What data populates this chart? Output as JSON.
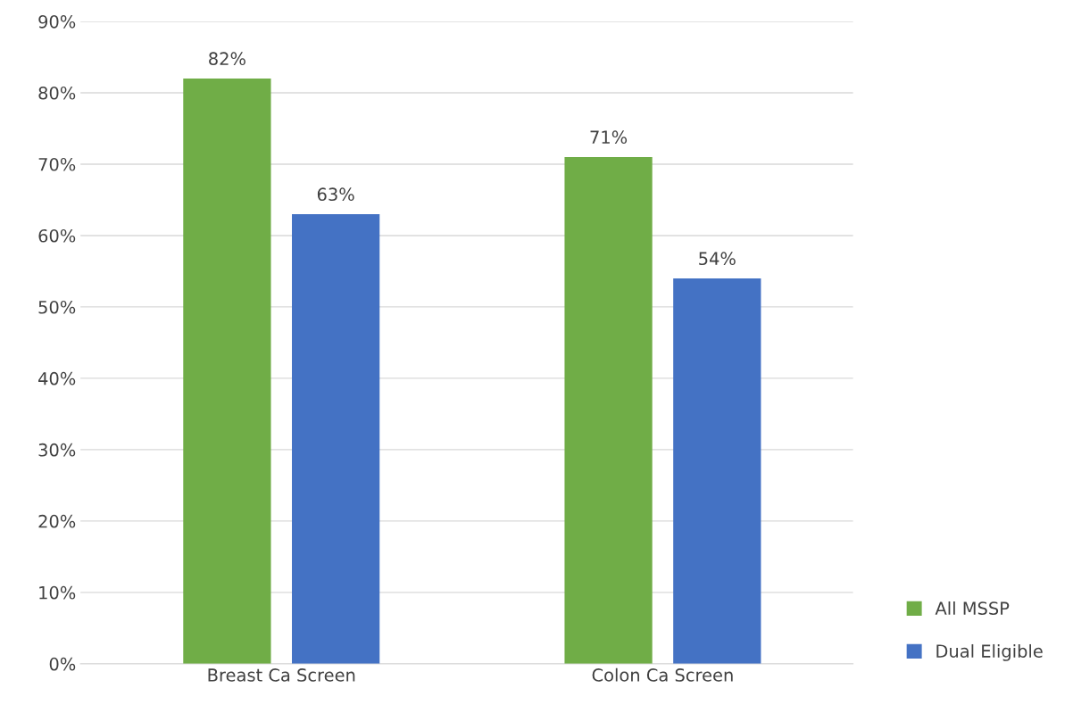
{
  "chart_data": {
    "type": "bar",
    "categories": [
      "Breast Ca Screen",
      "Colon Ca Screen"
    ],
    "series": [
      {
        "name": "All MSSP",
        "color": "#70ad47",
        "values": [
          82,
          71
        ],
        "value_labels": [
          "82%",
          "71%"
        ]
      },
      {
        "name": "Dual Eligible",
        "color": "#4472c4",
        "values": [
          63,
          54
        ],
        "value_labels": [
          "63%",
          "54%"
        ]
      }
    ],
    "ylim": [
      0,
      90
    ],
    "yticks": [
      {
        "value": 0,
        "label": "0%"
      },
      {
        "value": 10,
        "label": "10%"
      },
      {
        "value": 20,
        "label": "20%"
      },
      {
        "value": 30,
        "label": "30%"
      },
      {
        "value": 40,
        "label": "40%"
      },
      {
        "value": 50,
        "label": "50%"
      },
      {
        "value": 60,
        "label": "60%"
      },
      {
        "value": 70,
        "label": "70%"
      },
      {
        "value": 80,
        "label": "80%"
      },
      {
        "value": 90,
        "label": "90%"
      }
    ],
    "grid": "y",
    "legend": "bottom right"
  }
}
